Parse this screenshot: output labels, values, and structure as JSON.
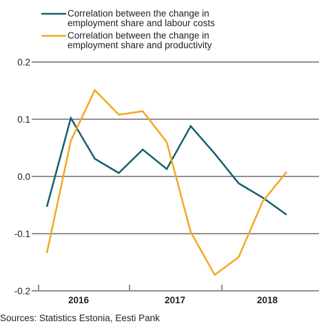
{
  "chart_data": {
    "type": "line",
    "title": "",
    "xlabel": "",
    "ylabel": "",
    "ylim": [
      -0.2,
      0.2
    ],
    "yticks": [
      "0.2",
      "0.1",
      "0.0",
      "-0.1",
      "-0.2"
    ],
    "ytick_values": [
      0.2,
      0.1,
      0.0,
      -0.1,
      -0.2
    ],
    "year_labels": [
      "2016",
      "2017",
      "2018"
    ],
    "grid": "horizontal",
    "legend_position": "top-left",
    "x": [
      "2015 Q4",
      "2016 Q1",
      "2016 Q2",
      "2016 Q3",
      "2016 Q4",
      "2017 Q1",
      "2017 Q2",
      "2017 Q3",
      "2017 Q4",
      "2018 Q1",
      "2018 Q2"
    ],
    "series": [
      {
        "name": "Correlation between the change in employment share and labour costs",
        "legend_lines": [
          "Correlation between the change in",
          "employment share and labour costs"
        ],
        "color": "#12606e",
        "values": [
          -0.053,
          0.102,
          0.031,
          0.006,
          0.047,
          0.013,
          0.088,
          0.04,
          -0.012,
          -0.037,
          -0.067
        ]
      },
      {
        "name": "Correlation between the change in employment share and productivity",
        "legend_lines": [
          "Correlation between the change in",
          "employment share and productivity"
        ],
        "color": "#f5a623",
        "values": [
          -0.134,
          0.062,
          0.151,
          0.108,
          0.114,
          0.06,
          -0.097,
          -0.172,
          -0.141,
          -0.044,
          0.008
        ]
      }
    ]
  },
  "source": "Sources: Statistics Estonia, Eesti Pank"
}
